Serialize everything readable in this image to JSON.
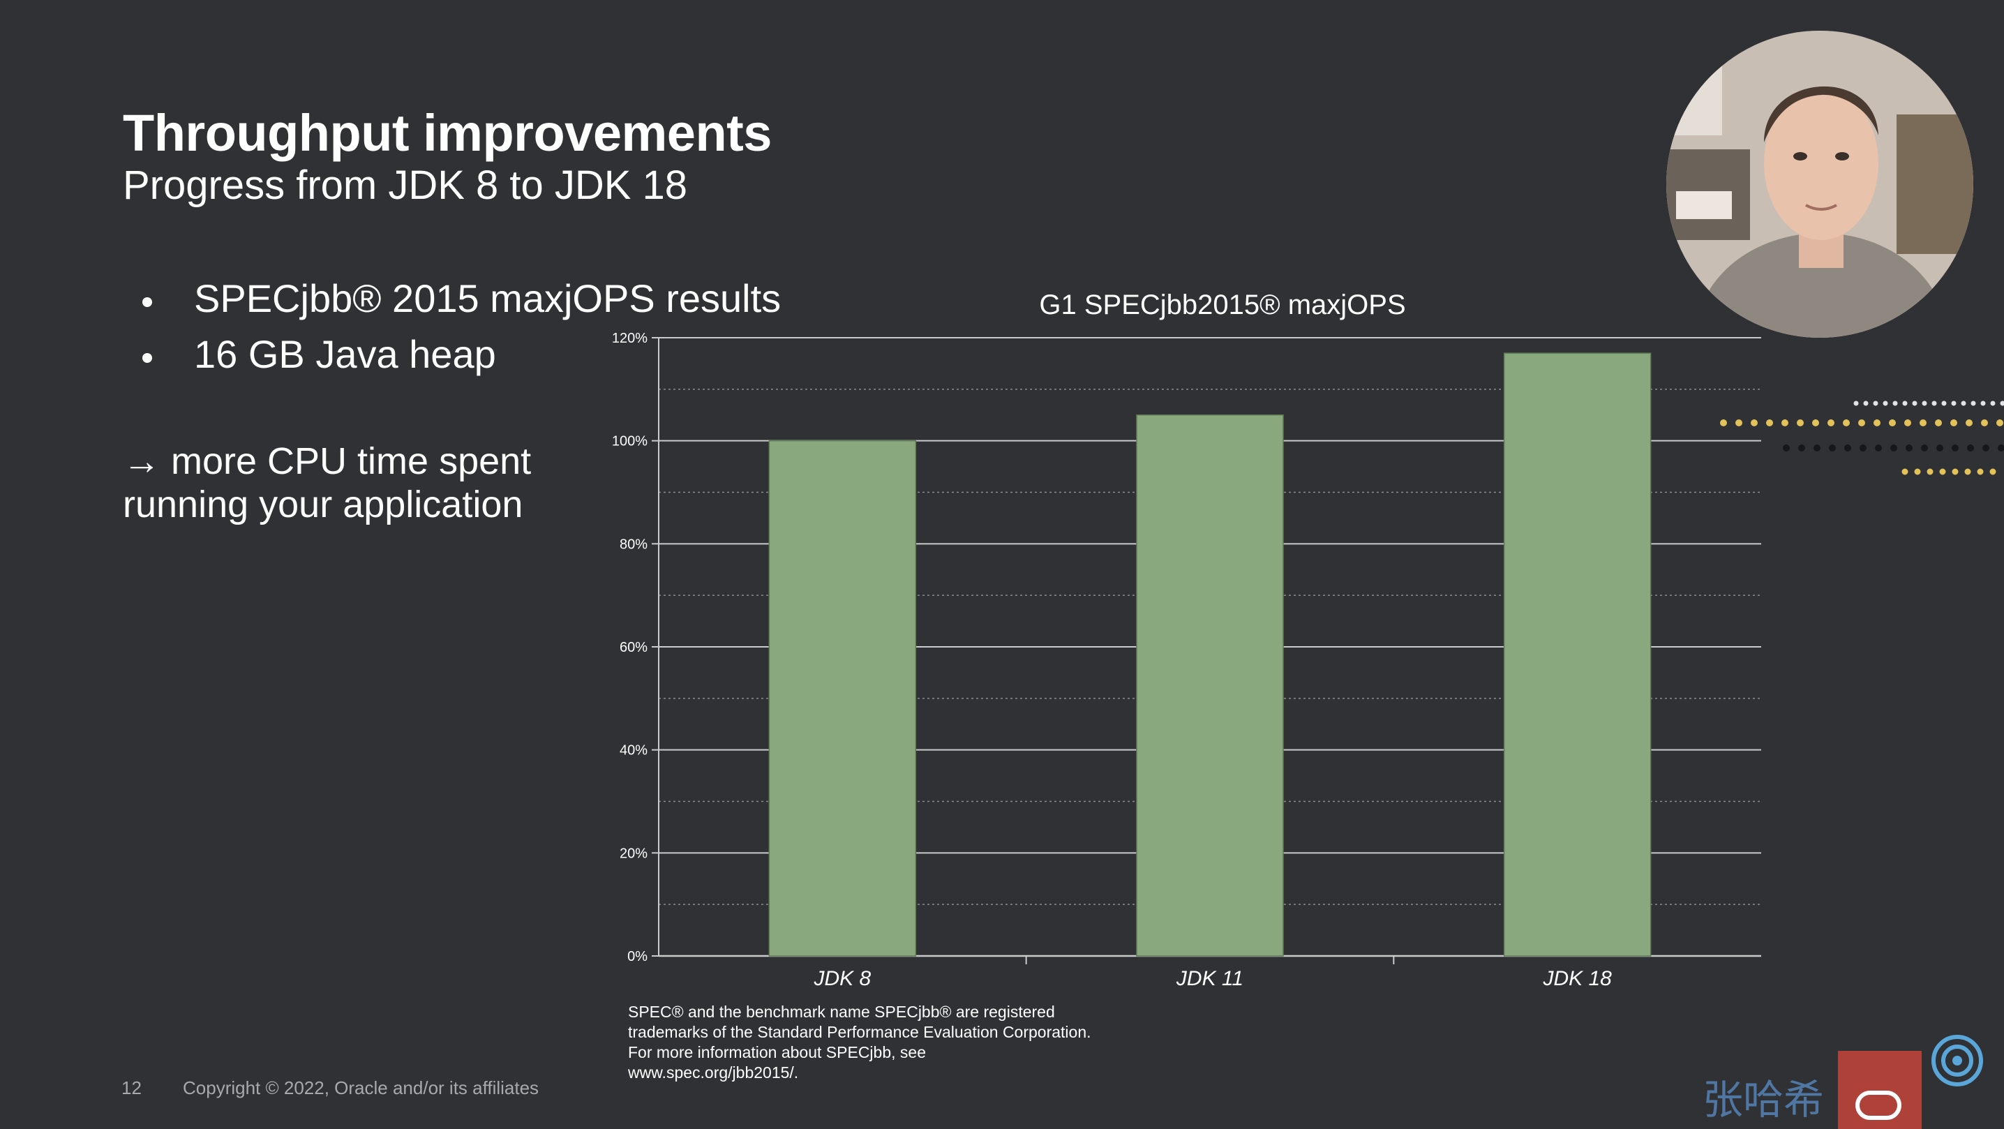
{
  "slide": {
    "title": "Throughput improvements",
    "subtitle": "Progress from JDK 8 to JDK 18",
    "bullets": [
      "SPECjbb® 2015 maxjOPS results",
      "16 GB Java heap"
    ],
    "note_lines": [
      "→ more CPU time spent",
      "running your application"
    ],
    "disclaimer_lines": [
      "SPEC® and the benchmark name SPECjbb® are registered",
      "trademarks of the Standard Performance Evaluation Corporation.",
      "For more information about SPECjbb, see",
      "www.spec.org/jbb2015/."
    ],
    "page_number": "12",
    "copyright": "Copyright © 2022, Oracle and/or its affiliates",
    "watermark_text": "张哈希"
  },
  "colors": {
    "background": "#2f3134",
    "bar": "#8aa87e",
    "grid": "#c9cbcd",
    "text": "#ffffff",
    "footer": "#a7a9ac"
  },
  "chart_data": {
    "type": "bar",
    "title": "G1 SPECjbb2015® maxjOPS",
    "categories": [
      "JDK 8",
      "JDK 11",
      "JDK 18"
    ],
    "values": [
      100,
      105,
      117
    ],
    "ylim": [
      0,
      120
    ],
    "yticks": [
      0,
      20,
      40,
      60,
      80,
      100,
      120
    ],
    "ytick_labels": [
      "0%",
      "20%",
      "40%",
      "60%",
      "80%",
      "100%",
      "120%"
    ],
    "xlabel": "",
    "ylabel": "",
    "grid": true,
    "minor_grid": true
  }
}
